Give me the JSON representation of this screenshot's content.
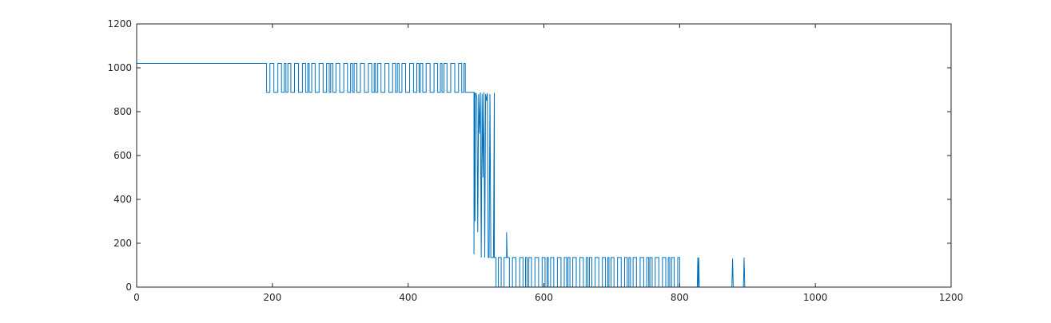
{
  "chart_data": {
    "type": "line",
    "title": "",
    "xlabel": "",
    "ylabel": "",
    "xlim": [
      0,
      1200
    ],
    "ylim": [
      0,
      1200
    ],
    "x_ticks": [
      0,
      200,
      400,
      600,
      800,
      1000,
      1200
    ],
    "y_ticks": [
      0,
      200,
      400,
      600,
      800,
      1000,
      1200
    ],
    "grid": false,
    "line_color": "#0072bd",
    "axis_color": "#262626",
    "series": [
      {
        "segments": [
          {
            "from": 0,
            "to": 188,
            "pattern": "const",
            "values": [
              1020
            ]
          },
          {
            "from": 188,
            "to": 485,
            "pattern": "toggle",
            "values": [
              1020,
              888
            ],
            "period": 3.5
          },
          {
            "from": 485,
            "to": 497,
            "pattern": "const",
            "values": [
              888
            ]
          },
          {
            "from": 497,
            "to": 500,
            "pattern": "list",
            "values": [
              150,
              888,
              300,
              885,
              880
            ]
          },
          {
            "from": 500,
            "to": 527,
            "pattern": "list",
            "values": [
              885,
              860,
              250,
              880,
              700,
              888,
              135,
              882,
              500,
              888,
              135,
              880,
              850,
              885,
              135,
              135,
              880,
              135,
              135,
              135,
              135,
              885
            ]
          },
          {
            "from": 527,
            "to": 545,
            "pattern": "toggle",
            "values": [
              135,
              0
            ],
            "period": 2.5
          },
          {
            "from": 545,
            "to": 546,
            "pattern": "list",
            "values": [
              250,
              135
            ]
          },
          {
            "from": 546,
            "to": 800,
            "pattern": "toggle",
            "values": [
              135,
              0
            ],
            "period": 3.2
          },
          {
            "from": 800,
            "to": 826,
            "pattern": "const",
            "values": [
              0
            ]
          },
          {
            "from": 826,
            "to": 829,
            "pattern": "list",
            "values": [
              0,
              135,
              0,
              135,
              0
            ]
          },
          {
            "from": 829,
            "to": 877,
            "pattern": "const",
            "values": [
              0
            ]
          },
          {
            "from": 877,
            "to": 879,
            "pattern": "list",
            "values": [
              0,
              130,
              0
            ]
          },
          {
            "from": 879,
            "to": 894,
            "pattern": "const",
            "values": [
              0
            ]
          },
          {
            "from": 894,
            "to": 896,
            "pattern": "list",
            "values": [
              0,
              135,
              0
            ]
          },
          {
            "from": 896,
            "to": 1024,
            "pattern": "const",
            "values": [
              0
            ]
          }
        ]
      }
    ]
  }
}
